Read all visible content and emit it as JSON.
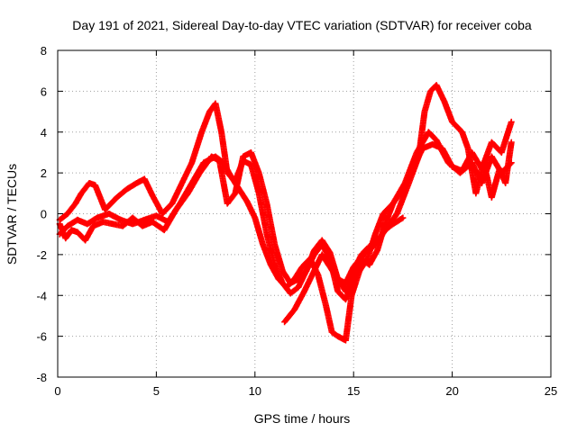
{
  "chart_data": {
    "type": "scatter",
    "title": "Day 191 of 2021, Sidereal Day-to-day VTEC variation (SDTVAR) for receiver coba",
    "xlabel": "GPS time / hours",
    "ylabel": "SDTVAR / TECUs",
    "xlim": [
      0,
      25
    ],
    "ylim": [
      -8,
      8
    ],
    "xticks": [
      0,
      5,
      10,
      15,
      20,
      25
    ],
    "yticks": [
      -8,
      -6,
      -4,
      -2,
      0,
      2,
      4,
      6,
      8
    ],
    "grid": true,
    "marker": "+",
    "series_color": "#ff0000",
    "series": [
      {
        "name": "track-1",
        "points": [
          [
            0.1,
            -0.3
          ],
          [
            0.5,
            0.0
          ],
          [
            0.9,
            0.5
          ],
          [
            1.2,
            1.0
          ],
          [
            1.6,
            1.5
          ],
          [
            1.9,
            1.4
          ],
          [
            2.4,
            0.2
          ],
          [
            3.0,
            0.8
          ],
          [
            3.5,
            1.2
          ],
          [
            4.0,
            1.5
          ],
          [
            4.4,
            1.7
          ],
          [
            4.8,
            0.9
          ],
          [
            5.3,
            0.0
          ],
          [
            5.8,
            0.5
          ],
          [
            6.3,
            1.5
          ],
          [
            6.8,
            2.5
          ],
          [
            7.3,
            4.0
          ],
          [
            7.7,
            5.0
          ],
          [
            8.0,
            5.4
          ],
          [
            8.3,
            4.0
          ],
          [
            8.6,
            2.0
          ],
          [
            9.0,
            1.6
          ],
          [
            9.4,
            2.6
          ],
          [
            9.8,
            2.4
          ],
          [
            10.2,
            1.0
          ],
          [
            10.6,
            -1.0
          ],
          [
            11.0,
            -2.5
          ],
          [
            11.4,
            -3.4
          ],
          [
            11.8,
            -3.9
          ],
          [
            12.2,
            -3.6
          ],
          [
            12.6,
            -2.8
          ],
          [
            13.0,
            -2.0
          ],
          [
            13.4,
            -1.5
          ],
          [
            13.8,
            -2.2
          ],
          [
            14.2,
            -3.8
          ],
          [
            14.6,
            -4.2
          ],
          [
            15.0,
            -3.2
          ],
          [
            15.4,
            -2.2
          ],
          [
            15.8,
            -2.5
          ],
          [
            16.2,
            -1.8
          ],
          [
            16.6,
            -0.5
          ],
          [
            17.0,
            0.5
          ],
          [
            17.5,
            1.2
          ],
          [
            18.0,
            2.2
          ],
          [
            18.5,
            3.2
          ],
          [
            19.0,
            3.4
          ],
          [
            19.5,
            3.2
          ],
          [
            20.0,
            2.3
          ],
          [
            20.5,
            2.1
          ],
          [
            21.0,
            3.0
          ],
          [
            21.5,
            2.2
          ],
          [
            22.0,
            3.5
          ],
          [
            22.5,
            3.0
          ],
          [
            23.0,
            4.5
          ]
        ]
      },
      {
        "name": "track-2",
        "points": [
          [
            0.1,
            -1.0
          ],
          [
            0.5,
            -0.6
          ],
          [
            1.0,
            -0.3
          ],
          [
            1.5,
            -0.5
          ],
          [
            2.0,
            -0.2
          ],
          [
            2.6,
            0.0
          ],
          [
            3.2,
            -0.3
          ],
          [
            3.8,
            -0.5
          ],
          [
            4.4,
            -0.3
          ],
          [
            5.0,
            -0.1
          ],
          [
            5.6,
            -0.4
          ],
          [
            6.2,
            0.5
          ],
          [
            6.8,
            1.5
          ],
          [
            7.4,
            2.5
          ],
          [
            8.0,
            2.8
          ],
          [
            8.4,
            2.5
          ],
          [
            8.8,
            1.8
          ],
          [
            9.2,
            1.2
          ],
          [
            9.6,
            0.6
          ],
          [
            10.0,
            -0.2
          ],
          [
            10.4,
            -1.5
          ],
          [
            10.8,
            -2.5
          ],
          [
            11.2,
            -3.2
          ],
          [
            11.6,
            -3.6
          ],
          [
            12.0,
            -3.2
          ],
          [
            12.4,
            -2.6
          ],
          [
            12.8,
            -2.2
          ],
          [
            13.2,
            -3.0
          ],
          [
            13.6,
            -4.5
          ],
          [
            13.9,
            -5.8
          ],
          [
            14.2,
            -6.0
          ],
          [
            14.6,
            -6.2
          ],
          [
            14.9,
            -4.0
          ],
          [
            15.3,
            -2.8
          ],
          [
            15.7,
            -2.2
          ],
          [
            16.1,
            -1.0
          ],
          [
            16.5,
            0.0
          ],
          [
            17.0,
            0.5
          ],
          [
            17.6,
            1.5
          ],
          [
            18.2,
            3.0
          ],
          [
            18.8,
            4.0
          ],
          [
            19.2,
            3.6
          ],
          [
            19.8,
            2.5
          ],
          [
            20.4,
            2.0
          ],
          [
            21.0,
            2.5
          ],
          [
            21.5,
            1.5
          ],
          [
            22.0,
            2.8
          ],
          [
            22.5,
            2.0
          ],
          [
            23.0,
            2.5
          ]
        ]
      },
      {
        "name": "track-3",
        "points": [
          [
            0.1,
            -0.5
          ],
          [
            0.4,
            -1.2
          ],
          [
            0.7,
            -0.8
          ],
          [
            1.0,
            -0.9
          ],
          [
            1.4,
            -1.3
          ],
          [
            1.8,
            -0.6
          ],
          [
            2.3,
            -0.4
          ],
          [
            2.8,
            -0.5
          ],
          [
            3.3,
            -0.6
          ],
          [
            3.8,
            -0.2
          ],
          [
            4.3,
            -0.6
          ],
          [
            4.8,
            -0.4
          ],
          [
            5.4,
            -0.8
          ],
          [
            6.0,
            0.2
          ],
          [
            6.6,
            1.0
          ],
          [
            7.2,
            2.0
          ],
          [
            7.8,
            2.8
          ],
          [
            8.2,
            2.6
          ],
          [
            8.6,
            0.5
          ],
          [
            9.0,
            1.0
          ],
          [
            9.4,
            2.8
          ],
          [
            9.8,
            3.0
          ],
          [
            10.2,
            2.0
          ],
          [
            10.6,
            0.5
          ],
          [
            11.0,
            -1.5
          ],
          [
            11.4,
            -2.8
          ],
          [
            11.8,
            -3.4
          ],
          [
            12.2,
            -3.2
          ],
          [
            12.6,
            -2.8
          ],
          [
            13.0,
            -1.8
          ],
          [
            13.4,
            -1.3
          ],
          [
            13.8,
            -1.9
          ],
          [
            14.2,
            -3.2
          ],
          [
            14.6,
            -3.8
          ],
          [
            15.0,
            -2.8
          ],
          [
            15.4,
            -2.0
          ],
          [
            15.8,
            -1.6
          ],
          [
            16.2,
            -1.4
          ],
          [
            16.6,
            -0.8
          ],
          [
            17.2,
            0.0
          ],
          [
            17.8,
            1.5
          ],
          [
            18.3,
            2.8
          ],
          [
            18.6,
            5.0
          ],
          [
            18.9,
            6.0
          ],
          [
            19.2,
            6.3
          ],
          [
            19.6,
            5.5
          ],
          [
            20.0,
            4.5
          ],
          [
            20.5,
            4.0
          ],
          [
            20.8,
            3.2
          ],
          [
            21.2,
            1.0
          ],
          [
            21.6,
            2.5
          ],
          [
            22.0,
            0.8
          ],
          [
            22.4,
            2.2
          ],
          [
            22.7,
            1.5
          ],
          [
            23.0,
            3.5
          ]
        ]
      },
      {
        "name": "track-4",
        "points": [
          [
            11.5,
            -5.3
          ],
          [
            12.0,
            -4.7
          ],
          [
            12.5,
            -3.8
          ],
          [
            13.0,
            -2.8
          ],
          [
            13.4,
            -2.0
          ],
          [
            13.8,
            -2.6
          ],
          [
            14.2,
            -3.2
          ],
          [
            14.6,
            -3.4
          ],
          [
            15.0,
            -2.6
          ],
          [
            15.5,
            -2.0
          ],
          [
            16.0,
            -1.6
          ],
          [
            16.6,
            -0.8
          ],
          [
            17.0,
            -0.5
          ],
          [
            17.5,
            -0.2
          ]
        ]
      }
    ]
  }
}
